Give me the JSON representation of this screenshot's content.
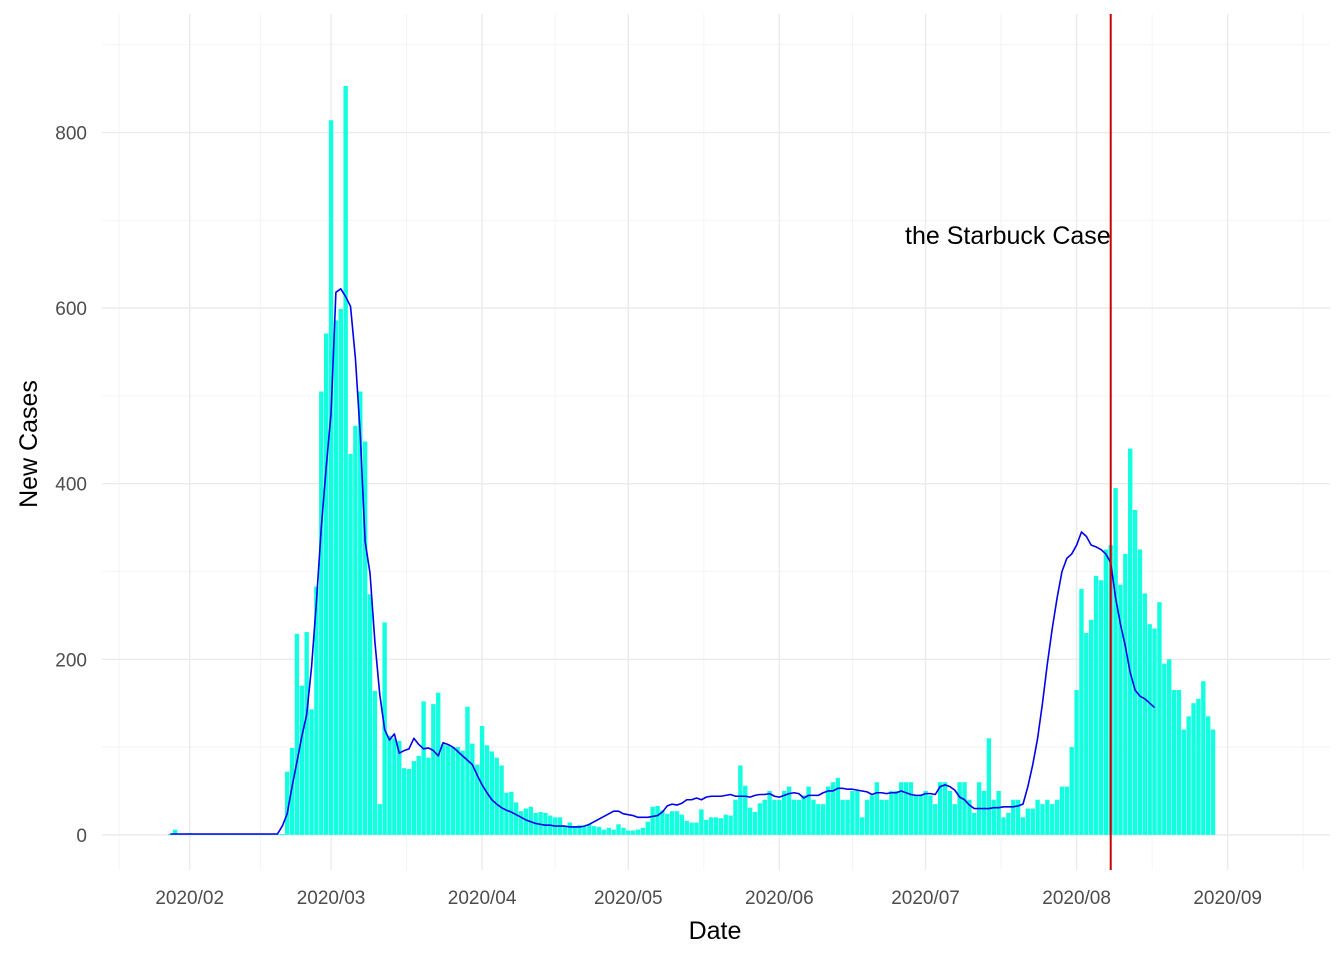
{
  "chart_data": {
    "type": "bar",
    "title": "",
    "xlabel": "Date",
    "ylabel": "New Cases",
    "x_ticks": [
      "2020/02",
      "2020/03",
      "2020/04",
      "2020/05",
      "2020/06",
      "2020/07",
      "2020/08",
      "2020/09"
    ],
    "y_ticks": [
      0,
      200,
      400,
      600,
      800
    ],
    "ylim": [
      -40,
      935
    ],
    "xlim": [
      "2020-01-14",
      "2020-09-22"
    ],
    "start_date": "2020-01-28",
    "grid": true,
    "bar_color": "#12FFE0",
    "series": [
      {
        "type": "bar",
        "values": [
          1,
          6,
          1,
          1,
          2,
          1,
          1,
          1,
          1,
          1,
          1,
          1,
          1,
          1,
          1,
          1,
          1,
          1,
          1,
          1,
          1,
          1,
          1,
          1,
          72,
          99,
          229,
          170,
          231,
          143,
          283,
          505,
          571,
          814,
          586,
          599,
          853,
          434,
          466,
          505,
          448,
          274,
          164,
          35,
          242,
          113,
          110,
          107,
          76,
          75,
          84,
          90,
          152,
          88,
          149,
          162,
          103,
          102,
          100,
          100,
          96,
          146,
          104,
          80,
          124,
          102,
          95,
          88,
          79,
          48,
          49,
          37,
          27,
          30,
          32,
          25,
          26,
          25,
          22,
          20,
          20,
          10,
          14,
          10,
          11,
          9,
          12,
          10,
          9,
          6,
          8,
          6,
          12,
          8,
          5,
          5,
          6,
          8,
          15,
          32,
          33,
          28,
          24,
          27,
          27,
          23,
          16,
          14,
          14,
          29,
          17,
          20,
          20,
          19,
          23,
          22,
          40,
          79,
          56,
          31,
          26,
          36,
          40,
          50,
          40,
          40,
          50,
          55,
          40,
          40,
          45,
          55,
          40,
          35,
          35,
          55,
          60,
          65,
          40,
          40,
          50,
          50,
          20,
          40,
          45,
          60,
          40,
          40,
          50,
          50,
          60,
          60,
          60,
          45,
          45,
          50,
          45,
          35,
          60,
          60,
          50,
          35,
          60,
          60,
          40,
          25,
          60,
          50,
          110,
          40,
          50,
          20,
          25,
          40,
          40,
          20,
          30,
          30,
          40,
          35,
          40,
          35,
          40,
          55,
          55,
          100,
          165,
          280,
          230,
          245,
          295,
          290,
          325,
          330,
          395,
          285,
          320,
          440,
          370,
          325,
          275,
          240,
          235,
          265,
          195,
          200,
          165,
          165,
          120,
          135,
          150,
          155,
          175,
          135,
          120
        ]
      },
      {
        "type": "line",
        "color": "#0000EE",
        "values": [
          1,
          1,
          1,
          1,
          1,
          1,
          1,
          1,
          1,
          1,
          1,
          1,
          1,
          1,
          1,
          1,
          1,
          1,
          1,
          1,
          1,
          1,
          1,
          10,
          24,
          55,
          83,
          112,
          137,
          191,
          265,
          350,
          418,
          480,
          618,
          622,
          613,
          602,
          543,
          456,
          334,
          298,
          220,
          160,
          120,
          108,
          115,
          93,
          96,
          98,
          110,
          103,
          98,
          99,
          96,
          90,
          105,
          103,
          100,
          95,
          90,
          85,
          80,
          68,
          57,
          48,
          40,
          35,
          31,
          28,
          26,
          23,
          20,
          17,
          15,
          13,
          12,
          11,
          11,
          10,
          10,
          10,
          9,
          9,
          9,
          10,
          12,
          15,
          18,
          21,
          24,
          27,
          27,
          24,
          23,
          22,
          20,
          20,
          20,
          21,
          22,
          26,
          33,
          35,
          34,
          36,
          40,
          40,
          42,
          40,
          43,
          44,
          44,
          44,
          45,
          46,
          44,
          44,
          44,
          43,
          45,
          46,
          46,
          47,
          44,
          43,
          45,
          47,
          48,
          47,
          42,
          45,
          45,
          45,
          48,
          50,
          50,
          53,
          53,
          52,
          52,
          51,
          50,
          49,
          46,
          48,
          48,
          47,
          48,
          48,
          50,
          48,
          46,
          45,
          45,
          47,
          47,
          46,
          55,
          57,
          55,
          51,
          43,
          40,
          34,
          30,
          30,
          30,
          30,
          31,
          31,
          32,
          32,
          32,
          33,
          35,
          55,
          80,
          110,
          150,
          195,
          235,
          270,
          300,
          315,
          320,
          330,
          345,
          340,
          330,
          328,
          325,
          320,
          310,
          270,
          240,
          215,
          185,
          165,
          158,
          155,
          150,
          145
        ]
      }
    ],
    "vline": {
      "date": "2020-08-08",
      "color": "#CC0000"
    },
    "annotation": {
      "text": "the Starbuck Case",
      "date": "2020-08-08",
      "y": 683,
      "anchor": "end"
    }
  }
}
